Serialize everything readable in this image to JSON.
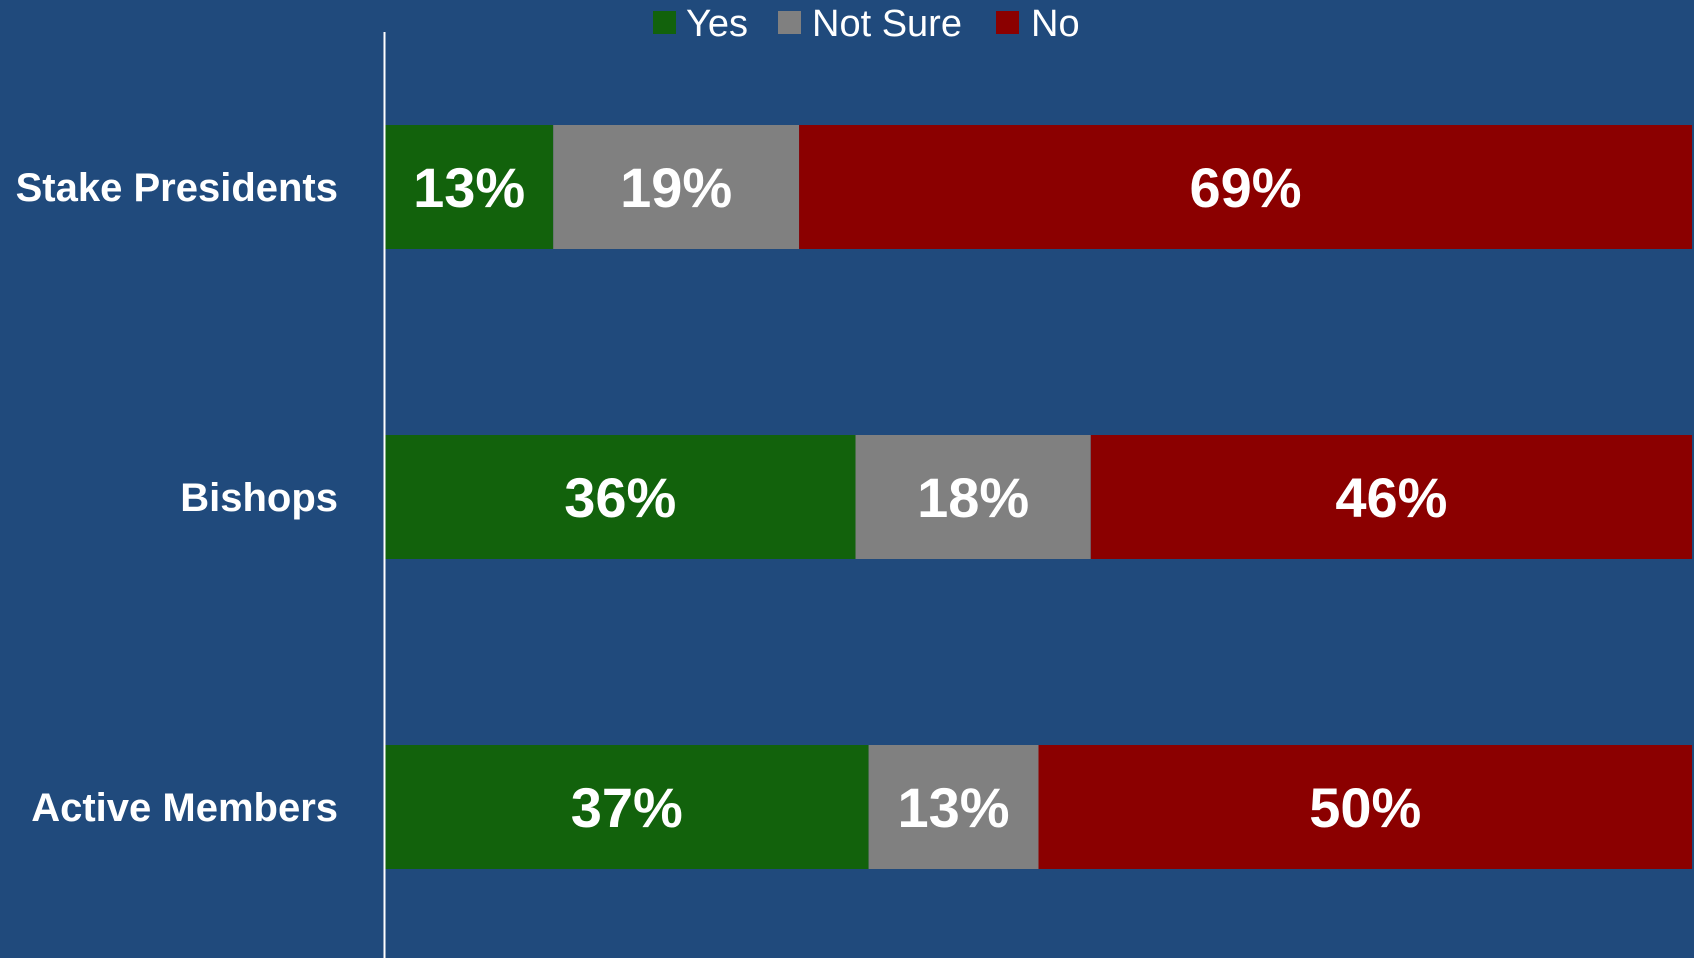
{
  "colors": {
    "background": "#204a7c",
    "axis": "#ffffff",
    "text": "#ffffff"
  },
  "chart_data": {
    "type": "bar",
    "orientation": "horizontal",
    "stacked": true,
    "percent_stacked": true,
    "title": "",
    "xlabel": "",
    "ylabel": "",
    "xlim": [
      0,
      100
    ],
    "grid": false,
    "legend_position": "top",
    "categories": [
      "Stake Presidents",
      "Bishops",
      "Active Members"
    ],
    "series": [
      {
        "name": "Yes",
        "color": "#12620c",
        "values": [
          13,
          36,
          37
        ],
        "labels": [
          "13%",
          "36%",
          "37%"
        ]
      },
      {
        "name": "Not Sure",
        "color": "#808080",
        "values": [
          19,
          18,
          13
        ],
        "labels": [
          "19%",
          "18%",
          "13%"
        ]
      },
      {
        "name": "No",
        "color": "#8b0000",
        "values": [
          69,
          46,
          50
        ],
        "labels": [
          "69%",
          "46%",
          "50%"
        ]
      }
    ]
  }
}
